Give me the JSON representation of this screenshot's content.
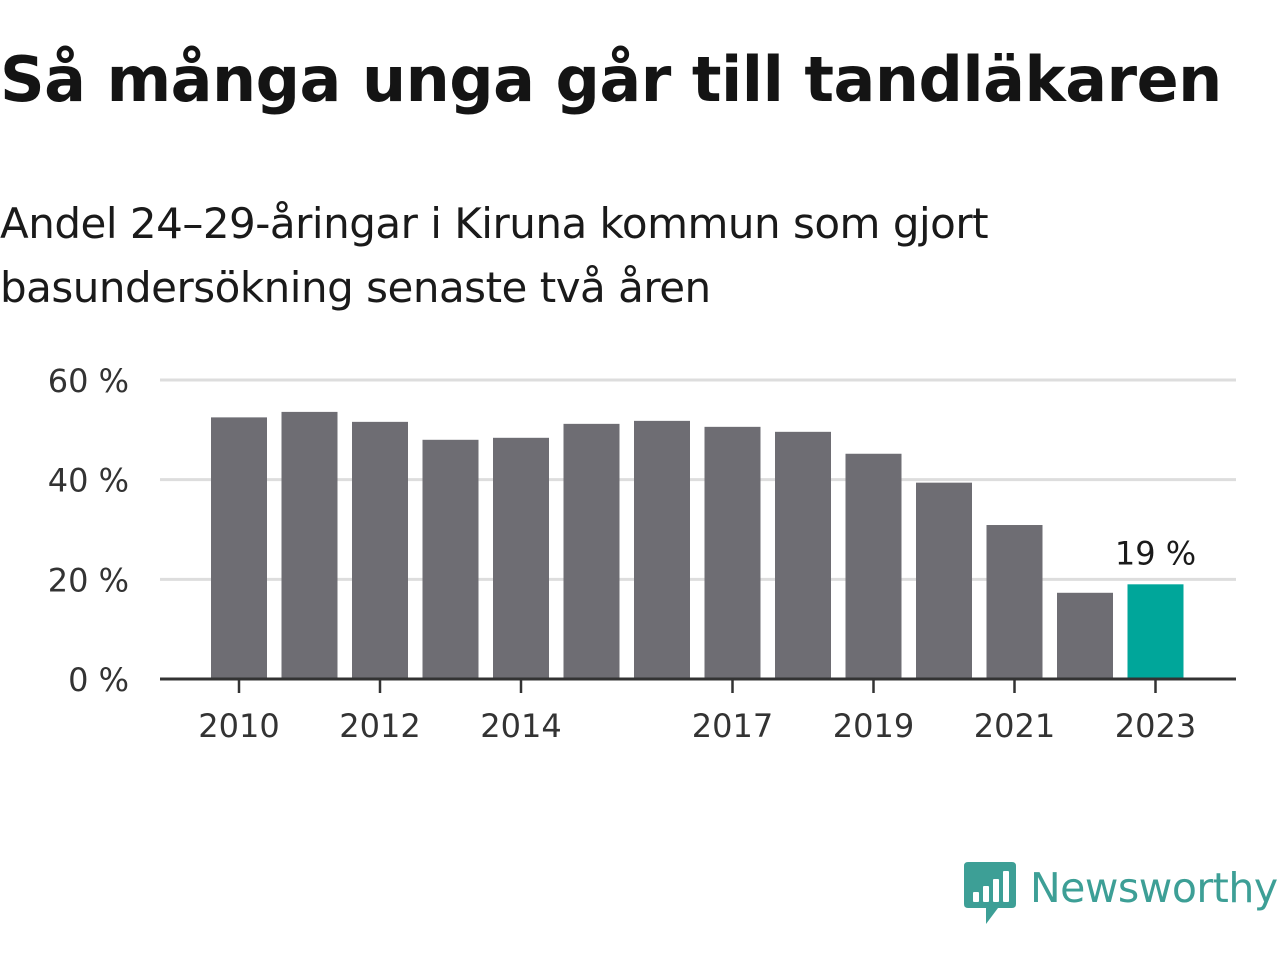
{
  "title": "Så många unga går till tandläkaren",
  "subtitle": "Andel 24–29-åringar i Kiruna kommun som gjort basundersökning senaste två åren",
  "brand": {
    "name": "Newsworthy",
    "logo_icon": "newsworthy-bar-chart-logo-icon",
    "color": "#3d9f96"
  },
  "chart_data": {
    "type": "bar",
    "x": [
      2010,
      2011,
      2012,
      2013,
      2014,
      2015,
      2016,
      2017,
      2018,
      2019,
      2020,
      2021,
      2022,
      2023
    ],
    "values": [
      52.5,
      53.6,
      51.6,
      48.0,
      48.4,
      51.2,
      51.8,
      50.6,
      49.6,
      45.2,
      39.4,
      30.9,
      17.3,
      19
    ],
    "ylim": [
      0,
      60
    ],
    "y_ticks": [
      {
        "value": 0,
        "label": "0 %"
      },
      {
        "value": 20,
        "label": "20 %"
      },
      {
        "value": 40,
        "label": "40 %"
      },
      {
        "value": 60,
        "label": "60 %"
      }
    ],
    "x_ticks": [
      {
        "value": 2010,
        "label": "2010"
      },
      {
        "value": 2012,
        "label": "2012"
      },
      {
        "value": 2014,
        "label": "2014"
      },
      {
        "value": 2017,
        "label": "2017"
      },
      {
        "value": 2019,
        "label": "2019"
      },
      {
        "value": 2021,
        "label": "2021"
      },
      {
        "value": 2023,
        "label": "2023"
      }
    ],
    "highlight": {
      "x": 2023,
      "label": "19 %"
    },
    "grid": true,
    "colors": {
      "bar": "#6e6d73",
      "highlight": "#00a69a",
      "grid": "#dddddd",
      "axis": "#333333"
    }
  }
}
